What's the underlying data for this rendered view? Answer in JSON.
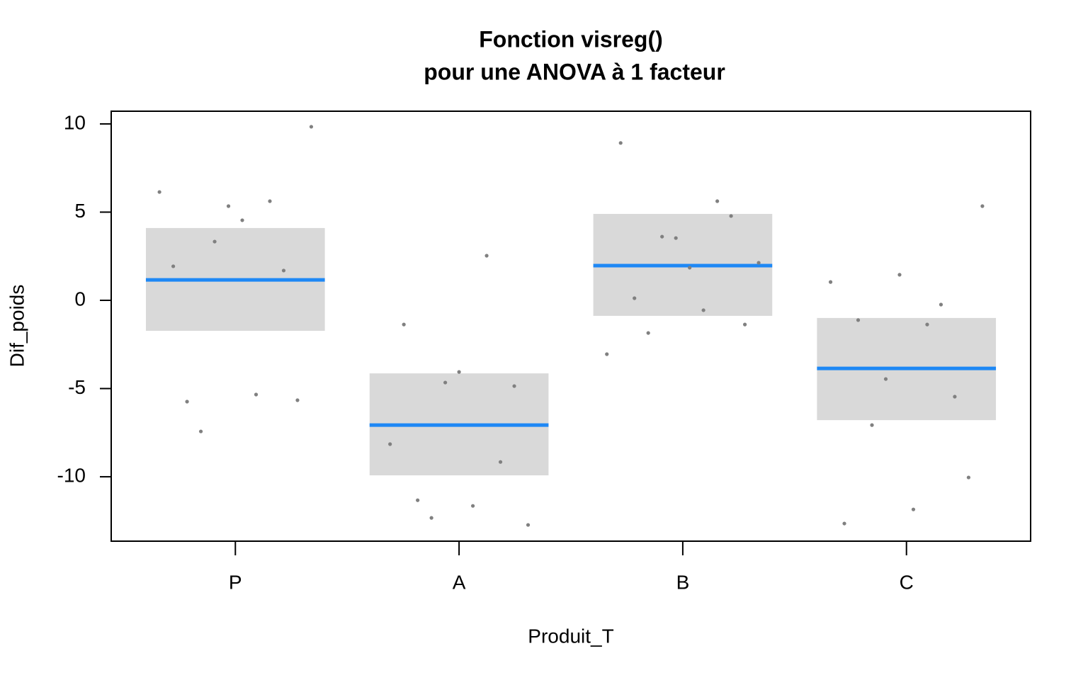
{
  "chart_data": {
    "type": "interval",
    "title": [
      "Fonction visreg()",
      "pour une ANOVA à 1 facteur"
    ],
    "x_label": "Produit_T",
    "y_label": "Dif_poids",
    "categories": [
      "P",
      "A",
      "B",
      "C"
    ],
    "fit": [
      1.16,
      -7.07,
      1.97,
      -3.86
    ],
    "lower": [
      -1.73,
      -9.92,
      -0.88,
      -6.79
    ],
    "upper": [
      4.1,
      -4.14,
      4.9,
      -1.0
    ],
    "points": [
      [
        6.14,
        1.93,
        -5.74,
        -7.43,
        3.33,
        5.34,
        4.54,
        -5.34,
        5.62,
        1.69,
        -5.66,
        9.84
      ],
      [
        -8.15,
        -1.37,
        -11.33,
        -12.33,
        -4.66,
        -4.06,
        -11.65,
        2.53,
        -9.16,
        -4.86,
        -12.73
      ],
      [
        -3.05,
        8.92,
        0.12,
        -1.85,
        3.61,
        3.53,
        1.85,
        -0.56,
        5.62,
        4.78,
        -1.37,
        2.13
      ],
      [
        1.04,
        -12.65,
        -1.12,
        -7.07,
        -4.46,
        1.45,
        -11.85,
        -1.37,
        -0.24,
        -5.46,
        -10.04,
        5.34
      ]
    ],
    "fit_color": "#1e88f5",
    "band_color": "#d9d9d9",
    "point_color": "#808080",
    "ylim": [
      -13.65,
      10.72
    ],
    "yticks": [
      -10,
      -5,
      0,
      5,
      10
    ],
    "grid": false
  }
}
